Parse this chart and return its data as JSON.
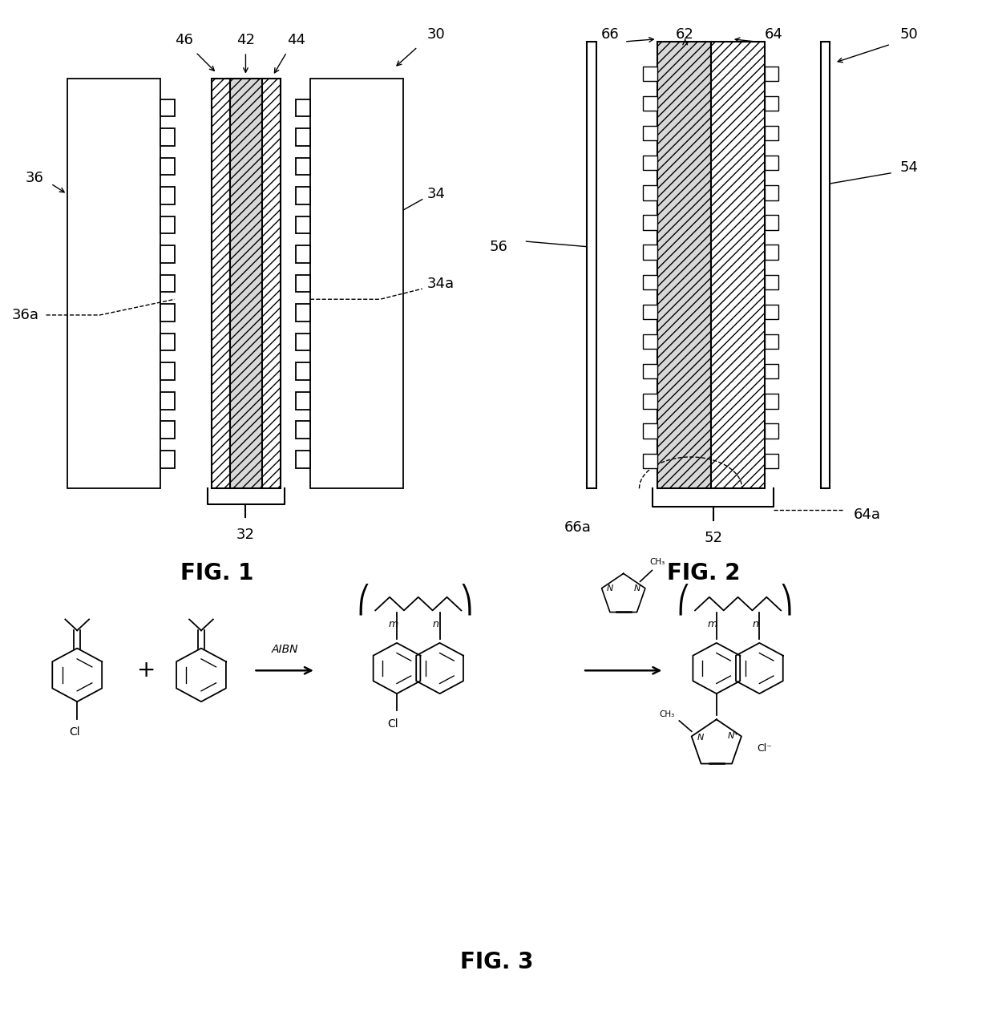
{
  "fig_width": 12.4,
  "fig_height": 12.61,
  "bg_color": "#ffffff",
  "fig1_label": "FIG. 1",
  "fig2_label": "FIG. 2",
  "fig3_label": "FIG. 3",
  "label_fontsize": 20,
  "annot_fontsize": 13
}
